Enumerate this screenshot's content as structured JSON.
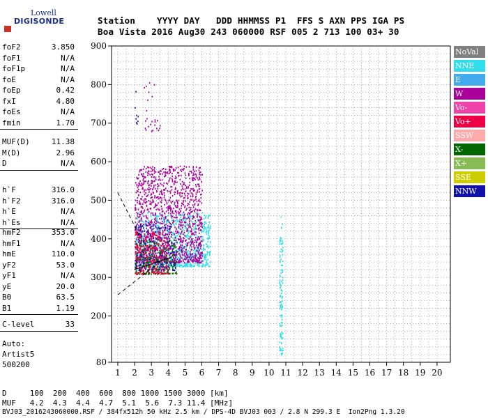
{
  "logo": {
    "top": "Lowell",
    "bottom": "DIGISONDE"
  },
  "header": {
    "line1": "Station    YYYY DAY   DDD HHMMSS P1  FFS S AXN PPS IGA PS",
    "line2": "Boa Vista 2016 Aug30 243 060000 RSF 005 2 713 100 03+ 30"
  },
  "params_group1": [
    {
      "name": "foF2",
      "value": "3.850"
    },
    {
      "name": "foF1",
      "value": "N/A"
    },
    {
      "name": "foF1p",
      "value": "N/A"
    },
    {
      "name": "foE",
      "value": "N/A"
    },
    {
      "name": "foEp",
      "value": "0.42"
    },
    {
      "name": "fxI",
      "value": "4.80"
    },
    {
      "name": "foEs",
      "value": "N/A"
    },
    {
      "name": "fmin",
      "value": "1.70"
    }
  ],
  "params_group2": [
    {
      "name": "MUF(D)",
      "value": "11.38"
    },
    {
      "name": "M(D)",
      "value": "2.96"
    },
    {
      "name": "D",
      "value": "N/A"
    }
  ],
  "params_group3": [
    {
      "name": "h`F",
      "value": "316.0"
    },
    {
      "name": "h`F2",
      "value": "316.0"
    },
    {
      "name": "h`E",
      "value": "N/A"
    },
    {
      "name": "h`Es",
      "value": "N/A"
    }
  ],
  "params_group4": [
    {
      "name": "hmF2",
      "value": "353.0"
    },
    {
      "name": "hmF1",
      "value": "N/A"
    },
    {
      "name": "hmE",
      "value": "110.0"
    },
    {
      "name": "yF2",
      "value": "53.0"
    },
    {
      "name": "yF1",
      "value": "N/A"
    },
    {
      "name": "yE",
      "value": "20.0"
    },
    {
      "name": "B0",
      "value": "63.5"
    },
    {
      "name": "B1",
      "value": "1.19"
    }
  ],
  "params_group5": [
    {
      "name": "C-level",
      "value": "33"
    }
  ],
  "auto": {
    "line1": "Auto:",
    "line2": "Artist5",
    "line3": "500200"
  },
  "footer": {
    "d_line": "D     100  200  400  600  800 1000 1500 3000 [km]",
    "muf_line": "MUF   4.2  4.3  4.4  4.7  5.1  5.6  7.3 11.4 [MHz]",
    "file_line": "BVJ03_2016243060000.RSF / 384fx512h 50 kHz 2.5 km / DPS-4D BVJ03 003 / 2.8 N 299.3 E  Ion2Png 1.3.20"
  },
  "legend": [
    {
      "label": "NoVal",
      "color": "#808080"
    },
    {
      "label": "NNE",
      "color": "#33ddee"
    },
    {
      "label": "E",
      "color": "#44aaee"
    },
    {
      "label": "W",
      "color": "#aa0099"
    },
    {
      "label": "Vo-",
      "color": "#ee44aa"
    },
    {
      "label": "Vo+",
      "color": "#ee0044"
    },
    {
      "label": "SSW",
      "color": "#ffaaaa"
    },
    {
      "label": "X-",
      "color": "#006600"
    },
    {
      "label": "X+",
      "color": "#88bb55"
    },
    {
      "label": "SSE",
      "color": "#cccc00"
    },
    {
      "label": "NNW",
      "color": "#1111aa"
    }
  ],
  "chart_data": {
    "type": "scatter",
    "title": "",
    "xlabel": "",
    "ylabel": "",
    "xlim": [
      1,
      20
    ],
    "ylim": [
      80,
      900
    ],
    "x_ticks": [
      1,
      2,
      3,
      4,
      5,
      6,
      7,
      8,
      9,
      10,
      11,
      12,
      13,
      14,
      15,
      16,
      17,
      18,
      19,
      20
    ],
    "y_ticks": [
      80,
      200,
      300,
      400,
      500,
      600,
      700,
      800,
      900
    ],
    "grid": true,
    "legend_position": "right",
    "clusters": [
      {
        "name": "NNE",
        "x_range": [
          2.0,
          6.5
        ],
        "y_range": [
          330,
          470
        ],
        "count": 900
      },
      {
        "name": "NNE",
        "x_range": [
          10.6,
          10.8
        ],
        "y_range": [
          100,
          460
        ],
        "count": 120
      },
      {
        "name": "W",
        "x_range": [
          2.0,
          6.0
        ],
        "y_range": [
          340,
          590
        ],
        "count": 1400
      },
      {
        "name": "Vo+",
        "x_range": [
          2.0,
          4.0
        ],
        "y_range": [
          310,
          420
        ],
        "count": 350
      },
      {
        "name": "X-",
        "x_range": [
          2.0,
          4.5
        ],
        "y_range": [
          310,
          400
        ],
        "count": 200
      },
      {
        "name": "NNW",
        "x_range": [
          2.0,
          4.5
        ],
        "y_range": [
          320,
          440
        ],
        "count": 150
      },
      {
        "name": "W",
        "x_range": [
          2.5,
          3.5
        ],
        "y_range": [
          680,
          810
        ],
        "count": 25
      },
      {
        "name": "NNW",
        "x_range": [
          2.0,
          2.2
        ],
        "y_range": [
          700,
          790
        ],
        "count": 8
      }
    ],
    "lines": [
      {
        "style": "dashed",
        "points": [
          [
            1.0,
            520
          ],
          [
            2.5,
            390
          ]
        ]
      },
      {
        "style": "dashed",
        "points": [
          [
            1.0,
            255
          ],
          [
            3.5,
            340
          ]
        ]
      },
      {
        "style": "solid",
        "points": [
          [
            2.0,
            320
          ],
          [
            4.0,
            350
          ]
        ]
      }
    ]
  }
}
